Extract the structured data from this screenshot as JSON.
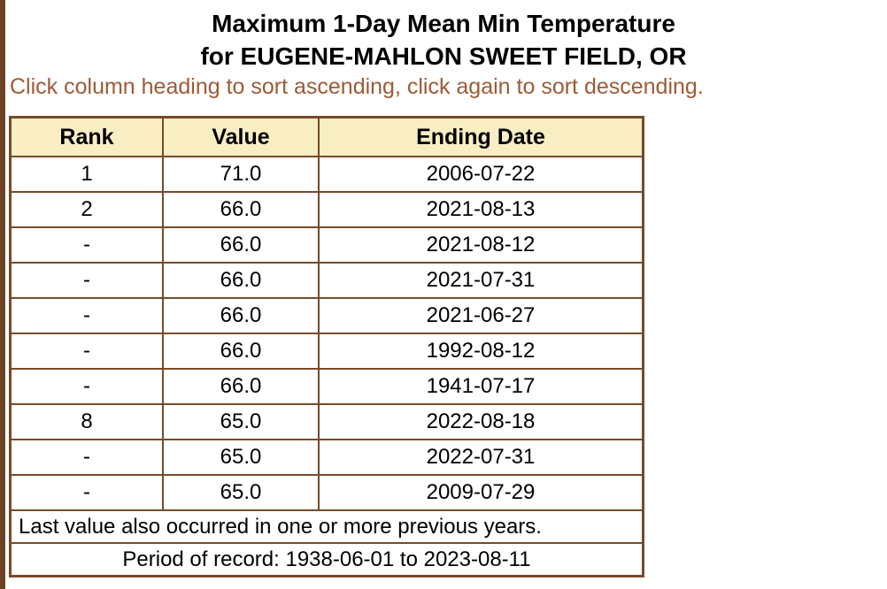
{
  "app": {
    "title_line1": "Maximum 1-Day Mean Min Temperature",
    "title_line2": "for EUGENE-MAHLON SWEET FIELD, OR",
    "sort_hint": "Click column heading to sort ascending, click again to sort descending."
  },
  "colors": {
    "left_bar": "#6d4227",
    "table_border": "#774a28",
    "header_background": "#f8edc3",
    "hint_text": "#9e5a35",
    "title_text": "#000000"
  },
  "table": {
    "columns": [
      "Rank",
      "Value",
      "Ending Date"
    ],
    "rows": [
      [
        "1",
        "71.0",
        "2006-07-22"
      ],
      [
        "2",
        "66.0",
        "2021-08-13"
      ],
      [
        "-",
        "66.0",
        "2021-08-12"
      ],
      [
        "-",
        "66.0",
        "2021-07-31"
      ],
      [
        "-",
        "66.0",
        "2021-06-27"
      ],
      [
        "-",
        "66.0",
        "1992-08-12"
      ],
      [
        "-",
        "66.0",
        "1941-07-17"
      ],
      [
        "8",
        "65.0",
        "2022-08-18"
      ],
      [
        "-",
        "65.0",
        "2022-07-31"
      ],
      [
        "-",
        "65.0",
        "2009-07-29"
      ]
    ],
    "footnote": "Last value also occurred in one or more previous years.",
    "period_of_record": "Period of record: 1938-06-01 to 2023-08-11"
  }
}
